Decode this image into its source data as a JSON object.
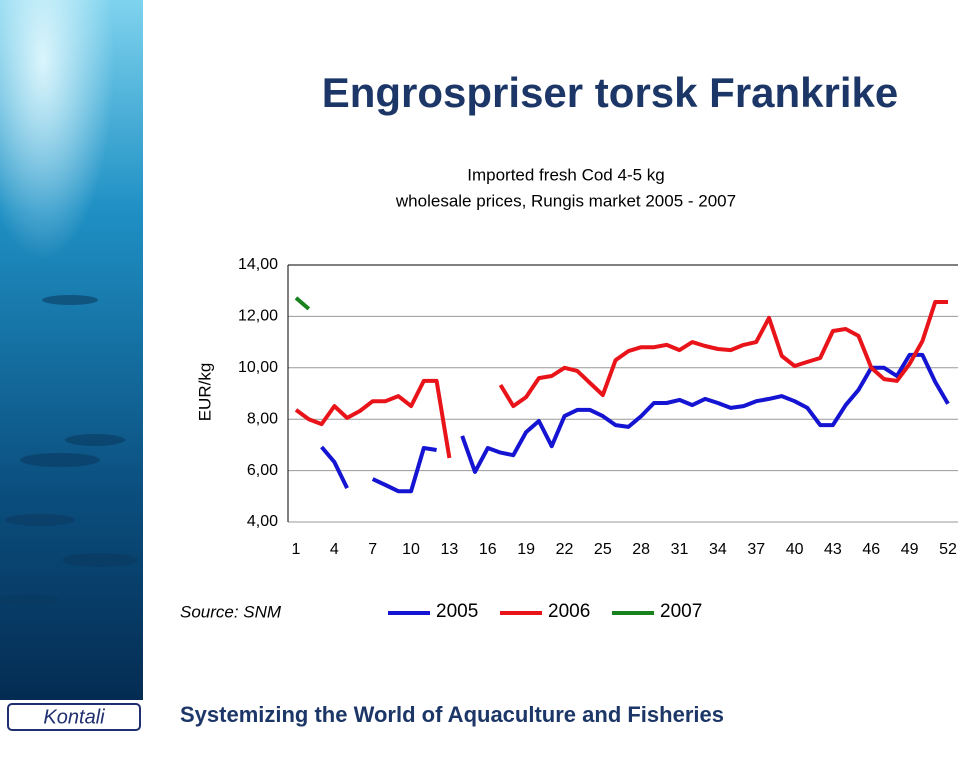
{
  "title": "Engrospriser torsk Frankrike",
  "footer": "Systemizing the World of Aquaculture and Fisheries",
  "logo": "Kontali",
  "chart_data": {
    "type": "line",
    "title": "Imported fresh Cod 4-5 kg",
    "subtitle": "wholesale prices, Rungis market 2005 - 2007",
    "y_label": "EUR/kg",
    "source": "Source: SNM",
    "categories": [
      "1",
      null,
      null,
      "4",
      null,
      null,
      "7",
      null,
      null,
      "10",
      null,
      null,
      "13",
      null,
      null,
      "16",
      null,
      null,
      "19",
      null,
      null,
      "22",
      null,
      null,
      "25",
      null,
      null,
      "28",
      null,
      null,
      "31",
      null,
      null,
      "34",
      null,
      null,
      "37",
      null,
      null,
      "40",
      null,
      null,
      "43",
      null,
      null,
      "46",
      null,
      null,
      "49",
      null,
      null,
      "52"
    ],
    "ylim": [
      4,
      14
    ],
    "yticks": [
      {
        "value": 4,
        "label": "4,00"
      },
      {
        "value": 6,
        "label": "6,00"
      },
      {
        "value": 8,
        "label": "8,00"
      },
      {
        "value": 10,
        "label": "10,00"
      },
      {
        "value": 12,
        "label": "12,00"
      },
      {
        "value": 14,
        "label": "14,00"
      }
    ],
    "grid": true,
    "series": [
      {
        "name": "2005",
        "color": "#1414d2",
        "values": [
          null,
          null,
          6.92,
          6.33,
          5.32,
          null,
          5.67,
          5.44,
          5.2,
          5.2,
          6.88,
          6.8,
          null,
          7.35,
          5.95,
          6.88,
          6.7,
          6.6,
          7.5,
          7.93,
          6.95,
          8.12,
          8.36,
          8.36,
          8.12,
          7.77,
          7.7,
          8.12,
          8.63,
          8.63,
          8.75,
          8.55,
          8.79,
          8.63,
          8.44,
          8.51,
          8.7,
          8.79,
          8.9,
          8.7,
          8.44,
          7.77,
          7.77,
          8.55,
          9.14,
          10.0,
          10.0,
          9.68,
          10.5,
          10.5,
          9.45,
          8.6
        ]
      },
      {
        "name": "2006",
        "color": "#e8141a",
        "values": [
          8.36,
          8.0,
          7.81,
          8.51,
          8.05,
          8.32,
          8.7,
          8.7,
          8.9,
          8.51,
          9.49,
          9.49,
          6.49,
          null,
          null,
          null,
          9.33,
          8.51,
          8.86,
          9.6,
          9.68,
          10.0,
          9.88,
          9.41,
          8.94,
          10.3,
          10.65,
          10.8,
          10.8,
          10.89,
          10.69,
          11.0,
          10.85,
          10.73,
          10.69,
          10.89,
          11.0,
          11.94,
          10.46,
          10.07,
          10.23,
          10.38,
          11.43,
          11.51,
          11.24,
          10.0,
          9.56,
          9.49,
          10.15,
          11.04,
          12.56,
          12.56
        ]
      },
      {
        "name": "2007",
        "color": "#17821e",
        "values": [
          12.72,
          12.29,
          null,
          null,
          null,
          null,
          null,
          null,
          null,
          null,
          null,
          null,
          null,
          null,
          null,
          null,
          null,
          null,
          null,
          null,
          null,
          null,
          null,
          null,
          null,
          null,
          null,
          null,
          null,
          null,
          null,
          null,
          null,
          null,
          null,
          null,
          null,
          null,
          null,
          null,
          null,
          null,
          null,
          null,
          null,
          null,
          null,
          null,
          null,
          null,
          null,
          null
        ]
      }
    ]
  }
}
